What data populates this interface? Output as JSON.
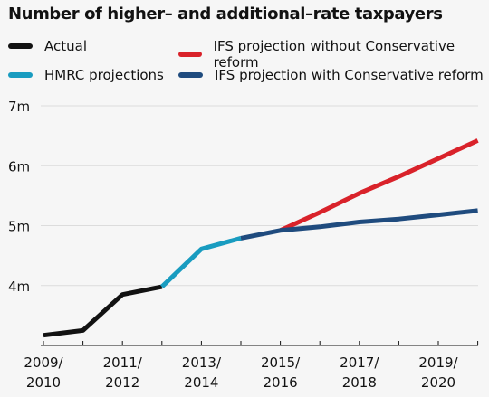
{
  "title": "Number of higher– and additional–rate taxpayers",
  "legend": [
    {
      "label": "Actual",
      "color": "#121212"
    },
    {
      "label": "HMRC projections",
      "color": "#199cc0"
    },
    {
      "label": "IFS projection without Conservative reform",
      "color": "#d9222a"
    },
    {
      "label": "IFS projection with Conservative reform",
      "color": "#1f4b7e"
    }
  ],
  "chart_data": {
    "type": "line",
    "title": "Number of higher– and additional–rate taxpayers",
    "xlabel": "",
    "ylabel": "",
    "ylim": [
      3,
      7
    ],
    "y_ticks": [
      4,
      5,
      6,
      7
    ],
    "y_tick_labels": [
      "4m",
      "5m",
      "6m",
      "7m"
    ],
    "x_tick_labels": [
      [
        "2009/",
        "2010"
      ],
      [
        "2011/",
        "2012"
      ],
      [
        "2013/",
        "2014"
      ],
      [
        "2015/",
        "2016"
      ],
      [
        "2017/",
        "2018"
      ],
      [
        "2019/",
        "2020"
      ]
    ],
    "grid": "horizontal",
    "series": [
      {
        "name": "Actual",
        "color": "#121212",
        "x": [
          "2009/10",
          "2010/11",
          "2011/12",
          "2012/13"
        ],
        "y": [
          3.17,
          3.25,
          3.85,
          3.98
        ]
      },
      {
        "name": "HMRC projections",
        "color": "#199cc0",
        "x": [
          "2012/13",
          "2013/14",
          "2014/15"
        ],
        "y": [
          3.98,
          4.61,
          4.79
        ]
      },
      {
        "name": "IFS projection without Conservative reform",
        "color": "#d9222a",
        "x": [
          "2015/16",
          "2016/17",
          "2017/18",
          "2018/19",
          "2019/20",
          "2020/21"
        ],
        "y": [
          4.92,
          5.22,
          5.54,
          5.82,
          6.12,
          6.42
        ]
      },
      {
        "name": "IFS projection with Conservative reform",
        "color": "#1f4b7e",
        "x": [
          "2014/15",
          "2015/16",
          "2016/17",
          "2017/18",
          "2018/19",
          "2019/20",
          "2020/21"
        ],
        "y": [
          4.79,
          4.92,
          4.98,
          5.06,
          5.11,
          5.18,
          5.25
        ]
      }
    ]
  }
}
